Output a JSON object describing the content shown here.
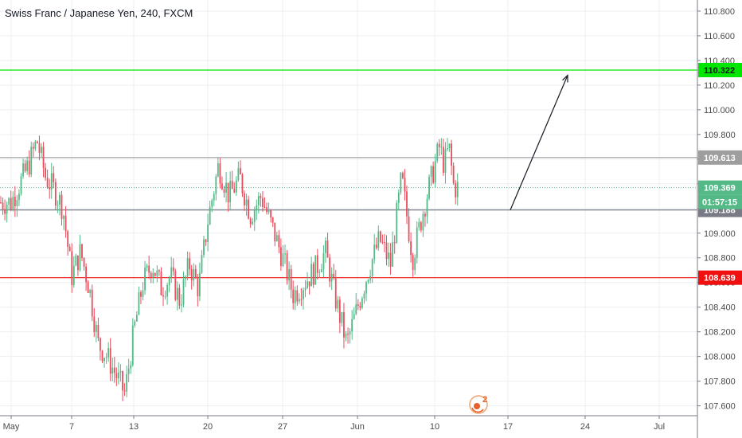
{
  "chart_data": {
    "type": "candlestick",
    "title": "Swiss Franc / Japanese Yen, 240, FXCM",
    "y_ticks": [
      "110.800",
      "110.600",
      "110.400",
      "110.200",
      "110.000",
      "109.800",
      "109.600",
      "109.400",
      "109.200",
      "109.000",
      "108.800",
      "108.600",
      "108.400",
      "108.200",
      "108.000",
      "107.800",
      "107.600"
    ],
    "x_ticks": [
      "May",
      "7",
      "13",
      "20",
      "27",
      "Jun",
      "10",
      "17",
      "24",
      "Jul"
    ],
    "ylim": [
      107.52,
      110.89
    ],
    "grid": true,
    "up_color": "#53b987",
    "down_color": "#eb4d5c",
    "waypoints": [
      [
        "May",
        109.25
      ],
      [
        "May",
        109.4
      ],
      [
        "May",
        109.55
      ],
      [
        "May",
        109.75
      ],
      [
        "May",
        109.45
      ],
      [
        "May",
        109.35
      ],
      [
        "May",
        109.2
      ],
      [
        "7",
        108.65
      ],
      [
        "7",
        108.85
      ],
      [
        "7",
        108.55
      ],
      [
        "7",
        108.1
      ],
      [
        "7",
        108.0
      ],
      [
        "7",
        107.85
      ],
      [
        "7",
        107.7
      ],
      [
        "13",
        108.2
      ],
      [
        "13",
        108.6
      ],
      [
        "13",
        108.75
      ],
      [
        "13",
        108.55
      ],
      [
        "13",
        108.65
      ],
      [
        "13",
        108.45
      ],
      [
        "13",
        108.75
      ],
      [
        "13",
        108.55
      ],
      [
        "20",
        109.1
      ],
      [
        "20",
        109.55
      ],
      [
        "20",
        109.3
      ],
      [
        "20",
        109.45
      ],
      [
        "20",
        109.15
      ],
      [
        "20",
        109.3
      ],
      [
        "20",
        109.05
      ],
      [
        "27",
        108.8
      ],
      [
        "27",
        108.5
      ],
      [
        "27",
        108.6
      ],
      [
        "27",
        108.7
      ],
      [
        "27",
        108.85
      ],
      [
        "27",
        108.45
      ],
      [
        "27",
        108.1
      ],
      [
        "Jun",
        108.4
      ],
      [
        "Jun",
        108.7
      ],
      [
        "Jun",
        108.95
      ],
      [
        "Jun",
        108.75
      ],
      [
        "Jun",
        109.45
      ],
      [
        "Jun",
        108.8
      ],
      [
        "Jun",
        109.2
      ],
      [
        "10",
        109.55
      ],
      [
        "10",
        109.7
      ],
      [
        "10",
        109.55
      ],
      [
        "10",
        109.7
      ],
      [
        "10",
        109.37
      ]
    ],
    "levels": [
      {
        "price": 110.322,
        "label": "110.322",
        "color": "#00e600",
        "style": "solid"
      },
      {
        "price": 109.613,
        "label": "109.613",
        "color": "#9e9e9e",
        "style": "solid"
      },
      {
        "price": 109.369,
        "label": "109.369",
        "color": "#53b987",
        "style": "dotted"
      },
      {
        "price": 109.188,
        "label": "109.188",
        "color": "#787b86",
        "style": "solid"
      },
      {
        "price": 108.639,
        "label": "108.639",
        "color": "#f01010",
        "style": "solid"
      }
    ],
    "countdown": "01:57:15",
    "forecast_arrow": {
      "from": [
        "17",
        109.188
      ],
      "to": [
        "24",
        110.28
      ]
    }
  },
  "event_badge": {
    "count": "2"
  },
  "colors": {
    "axis_bg": "#ffffff",
    "grid": "#eceff2",
    "arrow": "#131722"
  }
}
